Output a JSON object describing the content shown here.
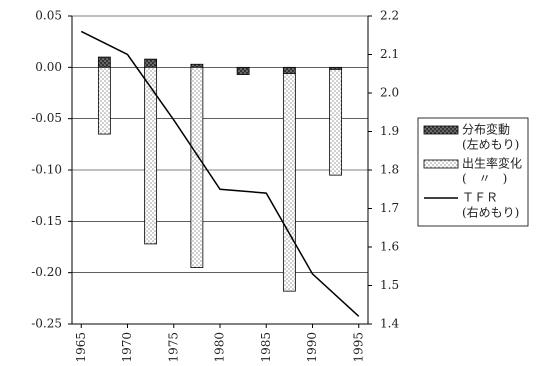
{
  "chart_data": {
    "type": "bar",
    "x": [
      1967.5,
      1972.5,
      1977.5,
      1982.5,
      1987.5,
      1992.5
    ],
    "series": [
      {
        "name": "分布変動",
        "legend_note": "(左めもり)",
        "color": "#333333",
        "values": [
          0.01,
          0.008,
          0.003,
          -0.007,
          -0.006,
          -0.002
        ]
      },
      {
        "name": "出生率変化",
        "legend_note": "(　〃　)",
        "color": "#e6e6e6",
        "values": [
          -0.065,
          -0.172,
          -0.195,
          0,
          -0.212,
          -0.103
        ]
      },
      {
        "name": "ＴＦＲ",
        "legend_note": "(右めもり)",
        "type": "line",
        "axis": "y2",
        "color": "#000000",
        "x": [
          1965,
          1970,
          1975,
          1980,
          1985,
          1990,
          1995
        ],
        "values": [
          2.16,
          2.1,
          1.93,
          1.75,
          1.74,
          1.53,
          1.42
        ]
      }
    ],
    "xlim": [
      1964,
      1996
    ],
    "xticks": [
      1965,
      1970,
      1975,
      1980,
      1985,
      1990,
      1995
    ],
    "ylim": [
      -0.25,
      0.05
    ],
    "yticks": [
      0.05,
      {
        "value": 0,
        "label": "0.00"
      },
      -0.05,
      {
        "value": -0.1,
        "label": "-0.10"
      },
      -0.15,
      {
        "value": -0.2,
        "label": "-0.20"
      },
      -0.25
    ],
    "y2lim": [
      1.4,
      2.2
    ],
    "y2ticks": [
      2.2,
      2.1,
      {
        "value": 2,
        "label": "2.0"
      },
      1.9,
      1.8,
      1.7,
      1.6,
      1.5,
      1.4
    ],
    "grid": true,
    "legend": "right"
  }
}
